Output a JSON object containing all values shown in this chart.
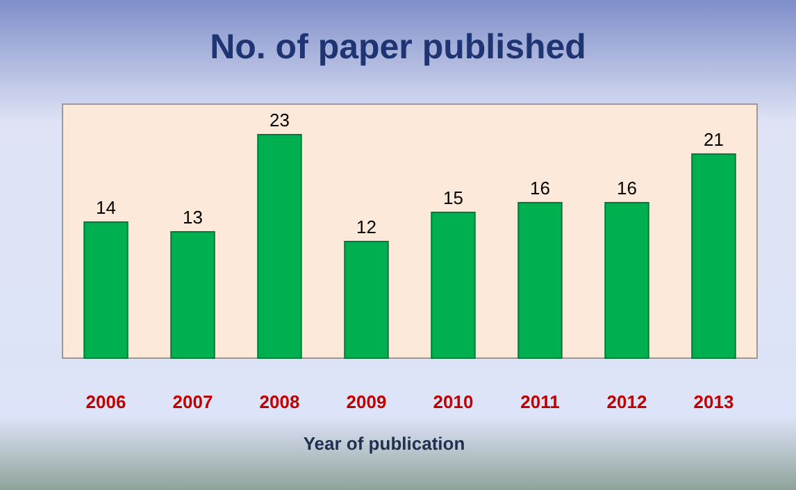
{
  "chart_data": {
    "type": "bar",
    "title": "No. of paper published",
    "xlabel": "Year of publication",
    "categories": [
      "2006",
      "2007",
      "2008",
      "2009",
      "2010",
      "2011",
      "2012",
      "2013"
    ],
    "values": [
      14,
      13,
      23,
      12,
      15,
      16,
      16,
      21
    ],
    "color": "#00b050",
    "data_labels": true
  }
}
